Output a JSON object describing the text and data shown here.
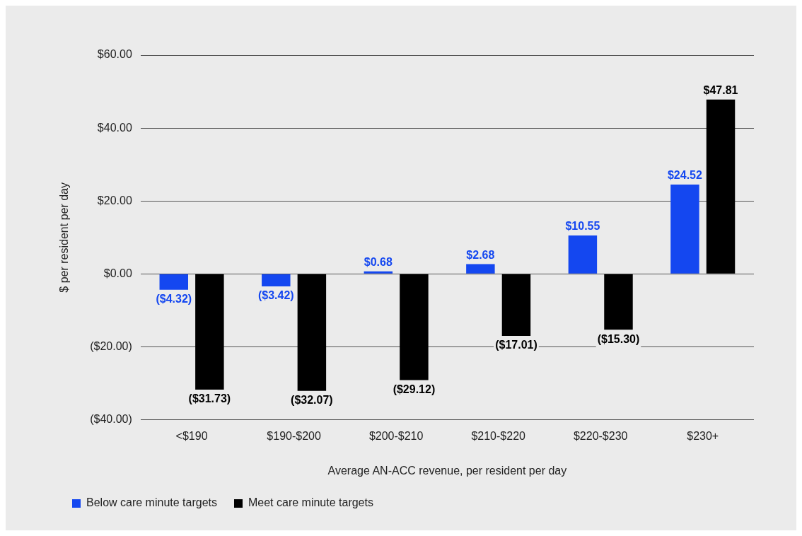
{
  "chart_data": {
    "type": "bar",
    "xlabel": "Average AN-ACC revenue, per resident per day",
    "ylabel": "$ per resident per day",
    "categories": [
      "<$190",
      "$190-$200",
      "$200-$210",
      "$210-$220",
      "$220-$230",
      "$230+"
    ],
    "series": [
      {
        "name": "Below care minute targets",
        "color": "#1447f0",
        "values": [
          -4.32,
          -3.42,
          0.68,
          2.68,
          10.55,
          24.52
        ],
        "value_labels": [
          "($4.32)",
          "($3.42)",
          "$0.68",
          "$2.68",
          "$10.55",
          "$24.52"
        ]
      },
      {
        "name": "Meet care minute targets",
        "color": "#000000",
        "values": [
          -31.73,
          -32.07,
          -29.12,
          -17.01,
          -15.3,
          47.81
        ],
        "value_labels": [
          "($31.73)",
          "($32.07)",
          "($29.12)",
          "($17.01)",
          "($15.30)",
          "$47.81"
        ]
      }
    ],
    "ylim": [
      -40,
      60
    ],
    "yticks": [
      {
        "value": -40,
        "label": "($40.00)"
      },
      {
        "value": -20,
        "label": "($20.00)"
      },
      {
        "value": 0,
        "label": "$0.00"
      },
      {
        "value": 20,
        "label": "$20.00"
      },
      {
        "value": 40,
        "label": "$40.00"
      },
      {
        "value": 60,
        "label": "$60.00"
      }
    ],
    "grid": "y",
    "legend": "bottom left"
  }
}
